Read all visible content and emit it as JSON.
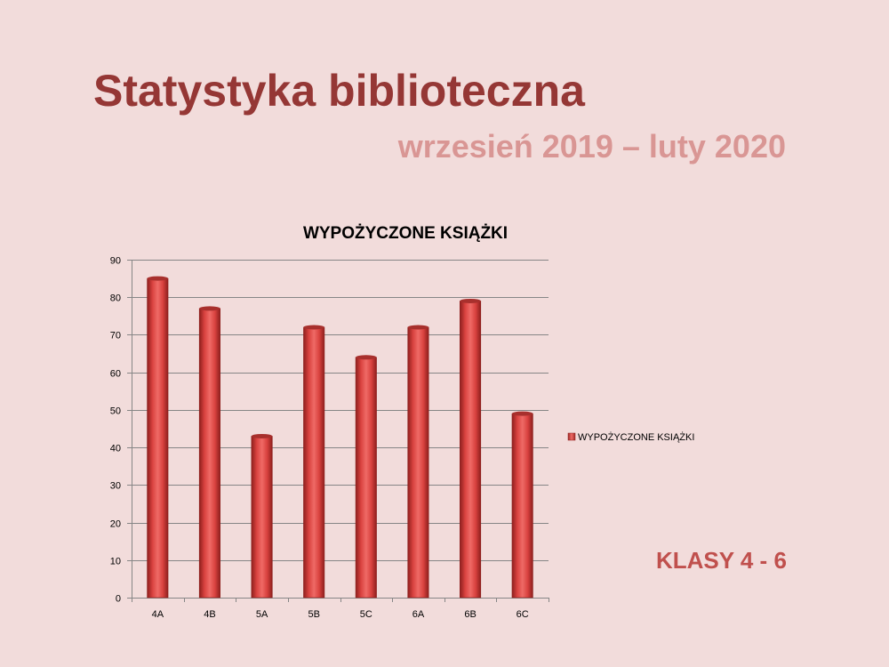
{
  "slide": {
    "title": "Statystyka biblioteczna",
    "subtitle": "wrzesień 2019 – luty 2020",
    "note": "KLASY 4 - 6"
  },
  "colors": {
    "background": "#f2dcdb",
    "title": "#953735",
    "subtitle": "#d99694",
    "note": "#c0504d",
    "bar": "#c0504d"
  },
  "chart_data": {
    "type": "bar",
    "title": "WYPOŻYCZONE KSIĄŻKI",
    "xlabel": "",
    "ylabel": "",
    "categories": [
      "4A",
      "4B",
      "5A",
      "5B",
      "5C",
      "6A",
      "6B",
      "6C"
    ],
    "series": [
      {
        "name": "WYPOŻYCZONE KSIĄŻKI",
        "values": [
          85,
          77,
          43,
          72,
          64,
          72,
          79,
          49
        ]
      }
    ],
    "ylim": [
      0,
      90
    ],
    "yticks": [
      0,
      10,
      20,
      30,
      40,
      50,
      60,
      70,
      80,
      90
    ],
    "grid": true,
    "legend": "right"
  }
}
